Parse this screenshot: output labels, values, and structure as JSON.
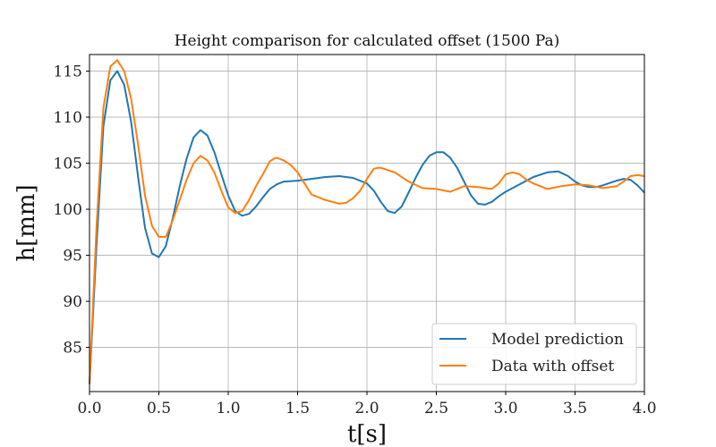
{
  "chart_data": {
    "type": "line",
    "title": "Height comparison for calculated offset (1500 Pa)",
    "xlabel": "t[s]",
    "ylabel": "h[mm]",
    "xlim": [
      0.0,
      4.0
    ],
    "ylim": [
      80.2,
      116.8
    ],
    "xticks": [
      "0.0",
      "0.5",
      "1.0",
      "1.5",
      "2.0",
      "2.5",
      "3.0",
      "3.5",
      "4.0"
    ],
    "xtick_values": [
      0.0,
      0.5,
      1.0,
      1.5,
      2.0,
      2.5,
      3.0,
      3.5,
      4.0
    ],
    "yticks": [
      "85",
      "90",
      "95",
      "100",
      "105",
      "110",
      "115"
    ],
    "ytick_values": [
      85,
      90,
      95,
      100,
      105,
      110,
      115
    ],
    "grid": true,
    "legend_position": "bottom-right",
    "series": [
      {
        "name": "Model prediction",
        "color": "#1f77b4",
        "x": [
          0.0,
          0.05,
          0.1,
          0.15,
          0.2,
          0.25,
          0.3,
          0.35,
          0.4,
          0.45,
          0.5,
          0.55,
          0.6,
          0.65,
          0.7,
          0.75,
          0.8,
          0.85,
          0.9,
          0.95,
          1.0,
          1.05,
          1.1,
          1.15,
          1.2,
          1.25,
          1.3,
          1.35,
          1.4,
          1.5,
          1.6,
          1.7,
          1.8,
          1.9,
          2.0,
          2.05,
          2.1,
          2.15,
          2.2,
          2.25,
          2.3,
          2.35,
          2.4,
          2.45,
          2.5,
          2.55,
          2.6,
          2.65,
          2.7,
          2.75,
          2.8,
          2.85,
          2.9,
          2.95,
          3.0,
          3.1,
          3.2,
          3.3,
          3.38,
          3.45,
          3.5,
          3.55,
          3.6,
          3.65,
          3.7,
          3.8,
          3.85,
          3.9,
          3.95,
          4.0
        ],
        "y": [
          81.0,
          96.0,
          109.0,
          114.0,
          115.0,
          113.5,
          109.5,
          103.5,
          98.0,
          95.2,
          94.8,
          96.0,
          99.0,
          102.5,
          105.5,
          107.8,
          108.6,
          108.0,
          106.2,
          103.8,
          101.5,
          99.8,
          99.3,
          99.5,
          100.3,
          101.3,
          102.2,
          102.7,
          103.0,
          103.1,
          103.3,
          103.5,
          103.6,
          103.4,
          102.8,
          102.0,
          100.8,
          99.8,
          99.6,
          100.3,
          101.8,
          103.4,
          104.8,
          105.8,
          106.2,
          106.2,
          105.6,
          104.5,
          103.0,
          101.5,
          100.6,
          100.5,
          100.8,
          101.4,
          101.9,
          102.7,
          103.5,
          104.0,
          104.1,
          103.6,
          103.0,
          102.6,
          102.4,
          102.4,
          102.6,
          103.1,
          103.3,
          103.2,
          102.6,
          101.8
        ]
      },
      {
        "name": "Data with offset",
        "color": "#ff7f0e",
        "x": [
          0.0,
          0.05,
          0.1,
          0.15,
          0.2,
          0.25,
          0.3,
          0.35,
          0.4,
          0.45,
          0.5,
          0.55,
          0.6,
          0.65,
          0.7,
          0.75,
          0.8,
          0.85,
          0.9,
          0.95,
          1.0,
          1.05,
          1.1,
          1.15,
          1.2,
          1.25,
          1.3,
          1.33,
          1.35,
          1.4,
          1.45,
          1.5,
          1.55,
          1.6,
          1.7,
          1.8,
          1.85,
          1.9,
          1.95,
          2.0,
          2.05,
          2.08,
          2.1,
          2.2,
          2.3,
          2.4,
          2.5,
          2.6,
          2.7,
          2.8,
          2.9,
          2.95,
          3.0,
          3.05,
          3.1,
          3.15,
          3.2,
          3.3,
          3.4,
          3.5,
          3.6,
          3.7,
          3.8,
          3.85,
          3.9,
          3.95,
          4.0
        ],
        "y": [
          81.0,
          98.0,
          111.0,
          115.5,
          116.2,
          115.0,
          112.0,
          107.0,
          101.5,
          98.2,
          97.0,
          97.0,
          98.8,
          101.0,
          103.2,
          105.0,
          105.8,
          105.3,
          104.0,
          102.0,
          100.2,
          99.6,
          99.8,
          101.0,
          102.5,
          103.8,
          105.2,
          105.5,
          105.6,
          105.3,
          104.8,
          104.0,
          102.8,
          101.6,
          101.0,
          100.6,
          100.7,
          101.2,
          102.0,
          103.3,
          104.4,
          104.5,
          104.5,
          104.0,
          103.0,
          102.3,
          102.2,
          101.9,
          102.5,
          102.4,
          102.2,
          102.8,
          103.8,
          104.0,
          103.8,
          103.2,
          102.8,
          102.2,
          102.5,
          102.7,
          102.6,
          102.3,
          102.5,
          103.0,
          103.6,
          103.7,
          103.6
        ]
      }
    ]
  }
}
